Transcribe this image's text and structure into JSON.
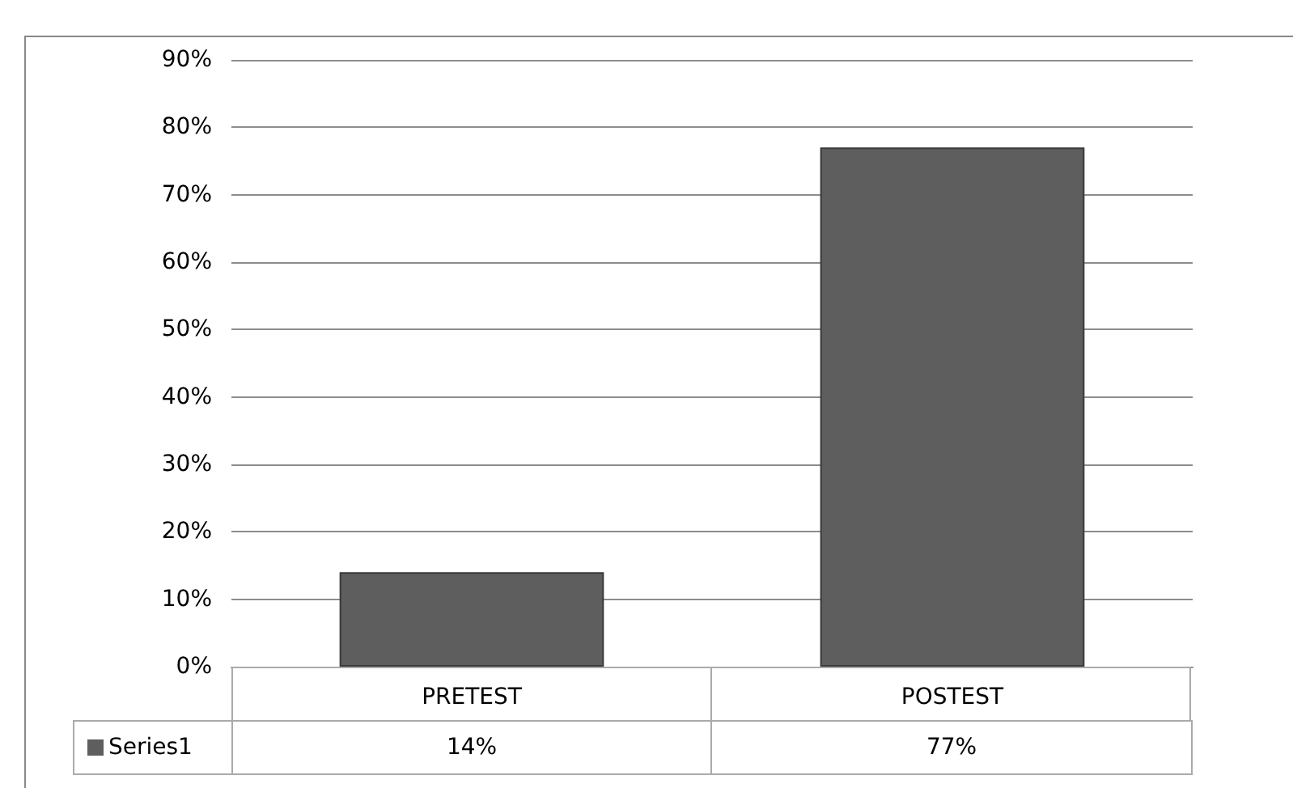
{
  "chart_data": {
    "type": "bar",
    "categories": [
      "PRETEST",
      "POSTEST"
    ],
    "series": [
      {
        "name": "Series1",
        "color": "#5e5e5e",
        "values": [
          14,
          77
        ],
        "value_labels": [
          "14%",
          "77%"
        ]
      }
    ],
    "ylim": [
      0,
      90
    ],
    "yticks": [
      {
        "value": 0,
        "label": "0%"
      },
      {
        "value": 10,
        "label": "10%"
      },
      {
        "value": 20,
        "label": "20%"
      },
      {
        "value": 30,
        "label": "30%"
      },
      {
        "value": 40,
        "label": "40%"
      },
      {
        "value": 50,
        "label": "50%"
      },
      {
        "value": 60,
        "label": "60%"
      },
      {
        "value": 70,
        "label": "70%"
      },
      {
        "value": 80,
        "label": "80%"
      },
      {
        "value": 90,
        "label": "90%"
      }
    ],
    "grid": "y"
  }
}
